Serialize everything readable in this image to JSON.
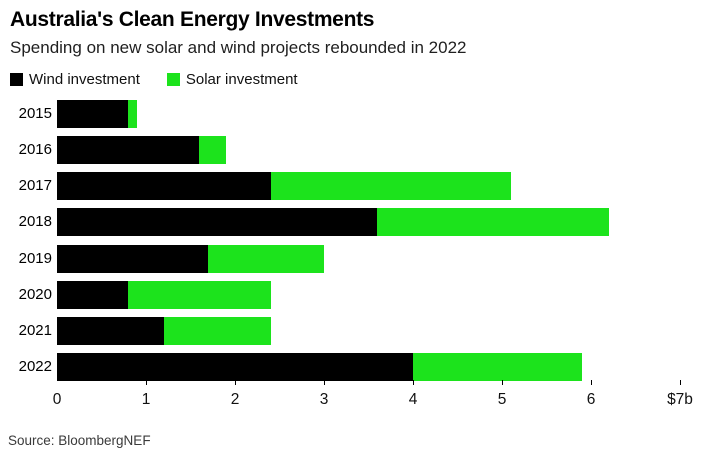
{
  "header": {
    "title": "Australia's Clean Energy Investments",
    "subtitle": "Spending on new solar and wind projects rebounded in 2022"
  },
  "legend": {
    "items": [
      {
        "label": "Wind investment",
        "color": "#000000"
      },
      {
        "label": "Solar investment",
        "color": "#1ce31c"
      }
    ]
  },
  "source": "Source: BloombergNEF",
  "colors": {
    "wind": "#000000",
    "solar": "#1ce31c",
    "background": "#ffffff"
  },
  "chart_data": {
    "type": "bar",
    "orientation": "horizontal",
    "stacked": true,
    "title": "Australia's Clean Energy Investments",
    "subtitle": "Spending on new solar and wind projects rebounded in 2022",
    "categories": [
      "2015",
      "2016",
      "2017",
      "2018",
      "2019",
      "2020",
      "2021",
      "2022"
    ],
    "series": [
      {
        "name": "Wind investment",
        "color": "#000000",
        "values": [
          0.8,
          1.6,
          2.4,
          3.6,
          1.7,
          0.8,
          1.2,
          4.0
        ]
      },
      {
        "name": "Solar investment",
        "color": "#1ce31c",
        "values": [
          0.1,
          0.3,
          2.7,
          2.6,
          1.3,
          1.6,
          1.2,
          1.9
        ]
      }
    ],
    "xlabel": "",
    "ylabel": "",
    "xlim": [
      0,
      7
    ],
    "x_ticks": [
      {
        "value": 0,
        "label": "0"
      },
      {
        "value": 1,
        "label": "1"
      },
      {
        "value": 2,
        "label": "2"
      },
      {
        "value": 3,
        "label": "3"
      },
      {
        "value": 4,
        "label": "4"
      },
      {
        "value": 5,
        "label": "5"
      },
      {
        "value": 6,
        "label": "6"
      },
      {
        "value": 7,
        "label": "$7b"
      }
    ],
    "grid": false,
    "legend_position": "top"
  }
}
